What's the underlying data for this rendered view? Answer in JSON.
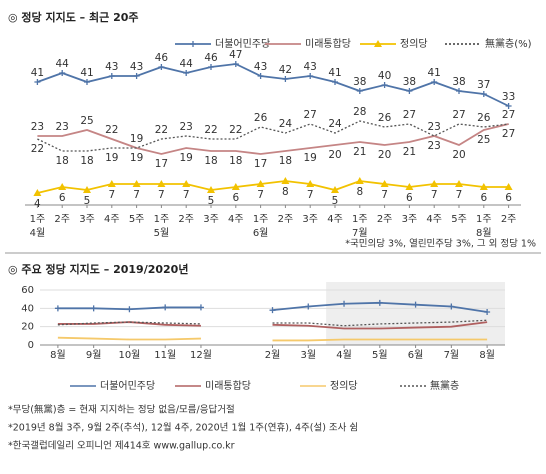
{
  "chart_data": [
    {
      "type": "line",
      "title": "◎  정당 지지도 – 최근 20주",
      "categories": [
        "1주\n4월",
        "2주",
        "3주",
        "4주",
        "5주",
        "1주\n5월",
        "2주",
        "3주",
        "4주",
        "1주\n6월",
        "2주",
        "3주",
        "4주",
        "1주\n7월",
        "2주",
        "3주",
        "4주",
        "5주",
        "1주\n8월",
        "2주"
      ],
      "series": [
        {
          "name": "더불어민주당",
          "color": "#4f74a8",
          "marker": "plus",
          "values": [
            41,
            44,
            41,
            43,
            43,
            46,
            44,
            46,
            47,
            43,
            42,
            43,
            41,
            38,
            40,
            38,
            41,
            38,
            37,
            33
          ]
        },
        {
          "name": "미래통합당",
          "color": "#c58585",
          "marker": "none",
          "values": [
            23,
            23,
            25,
            22,
            19,
            17,
            19,
            18,
            18,
            17,
            18,
            19,
            20,
            21,
            20,
            21,
            23,
            20,
            25,
            27
          ]
        },
        {
          "name": "정의당",
          "color": "#f2c200",
          "marker": "triangle",
          "values": [
            4,
            6,
            5,
            7,
            7,
            7,
            7,
            5,
            6,
            7,
            8,
            7,
            5,
            8,
            7,
            6,
            7,
            7,
            6,
            6
          ]
        },
        {
          "name": "無黨층(%)",
          "color": "#555555",
          "marker": "dotted",
          "values": [
            22,
            18,
            18,
            19,
            19,
            22,
            23,
            22,
            22,
            26,
            24,
            27,
            24,
            28,
            26,
            27,
            23,
            27,
            26,
            27
          ]
        }
      ],
      "ylim": [
        0,
        50
      ],
      "footnote": "*국민의당 3%, 열린민주당 3%, 그 외 정당 1%"
    },
    {
      "type": "line",
      "title": "◎  주요 정당 지지도 – 2019/2020년",
      "categories": [
        "8월",
        "9월",
        "10월",
        "11월",
        "12월",
        null,
        "2월",
        "3월",
        "4월",
        "5월",
        "6월",
        "7월",
        "8월"
      ],
      "series": [
        {
          "name": "더불어민주당",
          "color": "#4f74a8",
          "marker": "plus",
          "values": [
            40,
            40,
            39,
            41,
            41,
            null,
            38,
            42,
            45,
            46,
            44,
            42,
            36
          ]
        },
        {
          "name": "미래통합당",
          "color": "#b06060",
          "marker": "none",
          "values": [
            23,
            23,
            25,
            22,
            21,
            null,
            22,
            21,
            18,
            18,
            19,
            20,
            25
          ]
        },
        {
          "name": "정의당",
          "color": "#f5c96b",
          "marker": "none",
          "values": [
            8,
            7,
            6,
            6,
            7,
            null,
            5,
            5,
            6,
            6,
            6,
            6,
            6
          ]
        },
        {
          "name": "無黨층",
          "color": "#555555",
          "marker": "dotted",
          "values": [
            22,
            24,
            25,
            24,
            23,
            null,
            24,
            24,
            21,
            23,
            24,
            25,
            27
          ]
        }
      ],
      "ylim": [
        0,
        60
      ],
      "yticks": [
        0,
        20,
        40,
        60
      ],
      "grid": true,
      "notes": [
        "*무당(無黨)층 = 현재 지지하는 정당 없음/모름/응답거절",
        "*2019년 8월 3주, 9월 2주(추석), 12월 4주, 2020년 1월 1주(연휴), 4주(설) 조사 쉼",
        "*한국갤럽데일리 오피니언 제414호 www.gallup.co.kr"
      ]
    }
  ]
}
